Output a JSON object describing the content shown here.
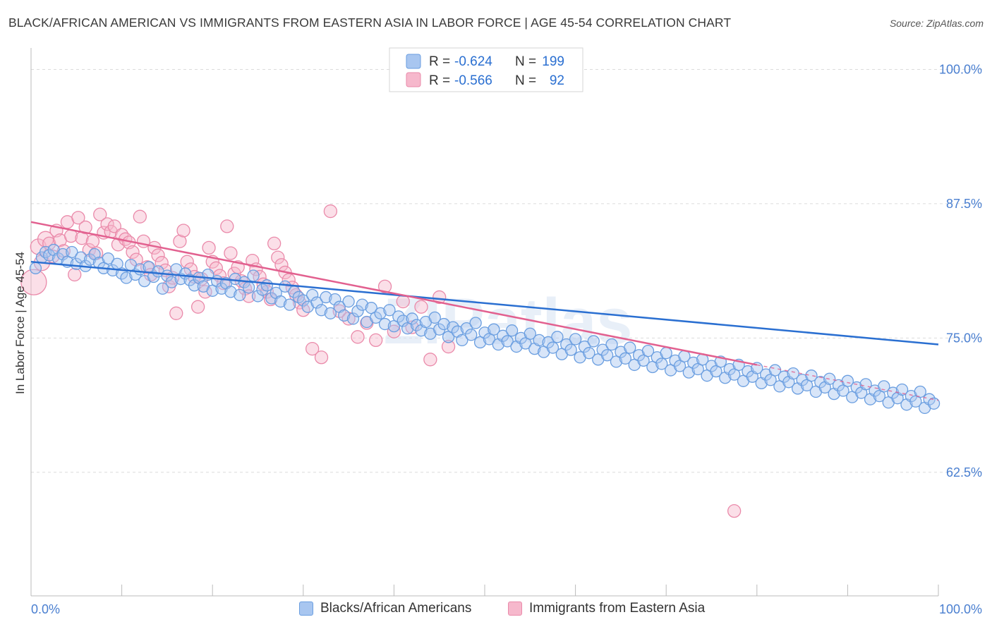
{
  "header": {
    "title": "BLACK/AFRICAN AMERICAN VS IMMIGRANTS FROM EASTERN ASIA IN LABOR FORCE | AGE 45-54 CORRELATION CHART",
    "source": "Source: ZipAtlas.com"
  },
  "watermark": "ZIPatlas",
  "legend_top": [
    {
      "r_label": "R =",
      "r_value": "-0.624",
      "n_label": "N =",
      "n_value": "199"
    },
    {
      "r_label": "R =",
      "r_value": "-0.566",
      "n_label": "N =",
      "n_value": "92"
    }
  ],
  "legend_bottom": [
    {
      "label": "Blacks/African Americans"
    },
    {
      "label": "Immigrants from Eastern Asia"
    }
  ],
  "colors": {
    "blue_fill": "#a8c6f0",
    "blue_stroke": "#6a9ee0",
    "blue_line": "#2a6fd1",
    "pink_fill": "#f6b8cc",
    "pink_stroke": "#ea8aaa",
    "pink_line": "#e2608f",
    "tick_label": "#4a7fd0",
    "grid": "#dcdcdc"
  },
  "chart_data": {
    "type": "scatter",
    "title": "BLACK/AFRICAN AMERICAN VS IMMIGRANTS FROM EASTERN ASIA IN LABOR FORCE | AGE 45-54 CORRELATION CHART",
    "xlabel": "",
    "ylabel": "In Labor Force | Age 45-54",
    "xlim": [
      0,
      100
    ],
    "ylim": [
      51,
      102
    ],
    "x_tick_labels": [
      "0.0%",
      "100.0%"
    ],
    "y_ticks": [
      62.5,
      75.0,
      87.5,
      100.0
    ],
    "y_tick_labels": [
      "62.5%",
      "75.0%",
      "87.5%",
      "100.0%"
    ],
    "grid": true,
    "legend_placement": "top-center",
    "series": [
      {
        "name": "Blacks/African Americans",
        "r": -0.624,
        "n": 199,
        "trend": {
          "x": [
            0,
            100
          ],
          "y": [
            82.1,
            74.4
          ]
        },
        "points": [
          [
            0.5,
            81.5
          ],
          [
            1.2,
            82.5
          ],
          [
            1.6,
            83.0
          ],
          [
            2.0,
            82.7
          ],
          [
            2.5,
            83.2
          ],
          [
            3.0,
            82.4
          ],
          [
            3.5,
            82.8
          ],
          [
            4.0,
            82.1
          ],
          [
            4.5,
            83.0
          ],
          [
            5.0,
            81.9
          ],
          [
            5.5,
            82.5
          ],
          [
            6.0,
            81.7
          ],
          [
            6.5,
            82.3
          ],
          [
            7.0,
            82.8
          ],
          [
            7.5,
            82.0
          ],
          [
            8.0,
            81.5
          ],
          [
            8.5,
            82.4
          ],
          [
            9.0,
            81.3
          ],
          [
            9.5,
            81.9
          ],
          [
            10.0,
            81.0
          ],
          [
            10.5,
            80.6
          ],
          [
            11.0,
            81.8
          ],
          [
            11.5,
            80.9
          ],
          [
            12.0,
            81.4
          ],
          [
            12.5,
            80.3
          ],
          [
            13.0,
            81.6
          ],
          [
            13.5,
            80.7
          ],
          [
            14.0,
            81.2
          ],
          [
            14.5,
            79.6
          ],
          [
            15.0,
            80.8
          ],
          [
            15.5,
            80.2
          ],
          [
            16.0,
            81.4
          ],
          [
            16.5,
            80.5
          ],
          [
            17.0,
            81.0
          ],
          [
            17.5,
            80.4
          ],
          [
            18.0,
            79.9
          ],
          [
            18.5,
            80.6
          ],
          [
            19.0,
            79.8
          ],
          [
            19.5,
            80.9
          ],
          [
            20.0,
            79.4
          ],
          [
            20.5,
            80.3
          ],
          [
            21.0,
            79.6
          ],
          [
            21.5,
            80.1
          ],
          [
            22.0,
            79.3
          ],
          [
            22.5,
            80.5
          ],
          [
            23.0,
            79.0
          ],
          [
            23.5,
            80.2
          ],
          [
            24.0,
            79.7
          ],
          [
            24.5,
            80.8
          ],
          [
            25.0,
            78.9
          ],
          [
            25.5,
            79.5
          ],
          [
            26.0,
            79.9
          ],
          [
            26.5,
            78.7
          ],
          [
            27.0,
            79.2
          ],
          [
            27.5,
            78.4
          ],
          [
            28.0,
            79.8
          ],
          [
            28.5,
            78.1
          ],
          [
            29.0,
            79.3
          ],
          [
            29.5,
            78.8
          ],
          [
            30.0,
            78.5
          ],
          [
            30.5,
            77.9
          ],
          [
            31.0,
            79.0
          ],
          [
            31.5,
            78.3
          ],
          [
            32.0,
            77.6
          ],
          [
            32.5,
            78.8
          ],
          [
            33.0,
            77.3
          ],
          [
            33.5,
            78.6
          ],
          [
            34.0,
            77.9
          ],
          [
            34.5,
            77.1
          ],
          [
            35.0,
            78.4
          ],
          [
            35.5,
            76.8
          ],
          [
            36.0,
            77.5
          ],
          [
            36.5,
            78.1
          ],
          [
            37.0,
            76.5
          ],
          [
            37.5,
            77.8
          ],
          [
            38.0,
            76.9
          ],
          [
            38.5,
            77.3
          ],
          [
            39.0,
            76.3
          ],
          [
            39.5,
            77.6
          ],
          [
            40.0,
            76.1
          ],
          [
            40.5,
            77.0
          ],
          [
            41.0,
            76.6
          ],
          [
            41.5,
            75.9
          ],
          [
            42.0,
            76.8
          ],
          [
            42.5,
            76.2
          ],
          [
            43.0,
            75.7
          ],
          [
            43.5,
            76.5
          ],
          [
            44.0,
            75.4
          ],
          [
            44.5,
            76.9
          ],
          [
            45.0,
            75.8
          ],
          [
            45.5,
            76.3
          ],
          [
            46.0,
            75.1
          ],
          [
            46.5,
            76.0
          ],
          [
            47.0,
            75.6
          ],
          [
            47.5,
            74.8
          ],
          [
            48.0,
            75.9
          ],
          [
            48.5,
            75.3
          ],
          [
            49.0,
            76.4
          ],
          [
            49.5,
            74.6
          ],
          [
            50.0,
            75.5
          ],
          [
            50.5,
            74.9
          ],
          [
            51.0,
            75.8
          ],
          [
            51.5,
            74.4
          ],
          [
            52.0,
            75.2
          ],
          [
            52.5,
            74.7
          ],
          [
            53.0,
            75.7
          ],
          [
            53.5,
            74.2
          ],
          [
            54.0,
            75.0
          ],
          [
            54.5,
            74.5
          ],
          [
            55.0,
            75.4
          ],
          [
            55.5,
            74.0
          ],
          [
            56.0,
            74.8
          ],
          [
            56.5,
            73.7
          ],
          [
            57.0,
            74.6
          ],
          [
            57.5,
            74.1
          ],
          [
            58.0,
            75.1
          ],
          [
            58.5,
            73.5
          ],
          [
            59.0,
            74.4
          ],
          [
            59.5,
            73.9
          ],
          [
            60.0,
            74.9
          ],
          [
            60.5,
            73.2
          ],
          [
            61.0,
            74.2
          ],
          [
            61.5,
            73.6
          ],
          [
            62.0,
            74.7
          ],
          [
            62.5,
            73.0
          ],
          [
            63.0,
            73.9
          ],
          [
            63.5,
            73.4
          ],
          [
            64.0,
            74.4
          ],
          [
            64.5,
            72.8
          ],
          [
            65.0,
            73.7
          ],
          [
            65.5,
            73.1
          ],
          [
            66.0,
            74.1
          ],
          [
            66.5,
            72.5
          ],
          [
            67.0,
            73.4
          ],
          [
            67.5,
            72.9
          ],
          [
            68.0,
            73.8
          ],
          [
            68.5,
            72.3
          ],
          [
            69.0,
            73.2
          ],
          [
            69.5,
            72.6
          ],
          [
            70.0,
            73.6
          ],
          [
            70.5,
            72.0
          ],
          [
            71.0,
            72.9
          ],
          [
            71.5,
            72.4
          ],
          [
            72.0,
            73.3
          ],
          [
            72.5,
            71.8
          ],
          [
            73.0,
            72.7
          ],
          [
            73.5,
            72.1
          ],
          [
            74.0,
            73.0
          ],
          [
            74.5,
            71.5
          ],
          [
            75.0,
            72.4
          ],
          [
            75.5,
            71.9
          ],
          [
            76.0,
            72.8
          ],
          [
            76.5,
            71.3
          ],
          [
            77.0,
            72.1
          ],
          [
            77.5,
            71.6
          ],
          [
            78.0,
            72.5
          ],
          [
            78.5,
            71.0
          ],
          [
            79.0,
            71.9
          ],
          [
            79.5,
            71.4
          ],
          [
            80.0,
            72.2
          ],
          [
            80.5,
            70.8
          ],
          [
            81.0,
            71.6
          ],
          [
            81.5,
            71.1
          ],
          [
            82.0,
            72.0
          ],
          [
            82.5,
            70.5
          ],
          [
            83.0,
            71.4
          ],
          [
            83.5,
            70.9
          ],
          [
            84.0,
            71.7
          ],
          [
            84.5,
            70.3
          ],
          [
            85.0,
            71.1
          ],
          [
            85.5,
            70.6
          ],
          [
            86.0,
            71.5
          ],
          [
            86.5,
            70.0
          ],
          [
            87.0,
            70.9
          ],
          [
            87.5,
            70.4
          ],
          [
            88.0,
            71.2
          ],
          [
            88.5,
            69.8
          ],
          [
            89.0,
            70.6
          ],
          [
            89.5,
            70.1
          ],
          [
            90.0,
            71.0
          ],
          [
            90.5,
            69.5
          ],
          [
            91.0,
            70.4
          ],
          [
            91.5,
            69.9
          ],
          [
            92.0,
            70.7
          ],
          [
            92.5,
            69.3
          ],
          [
            93.0,
            70.1
          ],
          [
            93.5,
            69.6
          ],
          [
            94.0,
            70.5
          ],
          [
            94.5,
            69.0
          ],
          [
            95.0,
            69.9
          ],
          [
            95.5,
            69.4
          ],
          [
            96.0,
            70.2
          ],
          [
            96.5,
            68.8
          ],
          [
            97.0,
            69.6
          ],
          [
            97.5,
            69.1
          ],
          [
            98.0,
            70.0
          ],
          [
            98.5,
            68.5
          ],
          [
            99.0,
            69.3
          ],
          [
            99.5,
            68.9
          ]
        ]
      },
      {
        "name": "Immigrants from Eastern Asia",
        "r": -0.566,
        "n": 92,
        "trend": {
          "x": [
            0,
            80
          ],
          "y": [
            85.8,
            72.5
          ]
        },
        "trend_dashed": {
          "x": [
            80,
            100
          ],
          "y": [
            72.5,
            69.2
          ]
        },
        "points": [
          [
            0.3,
            80.2
          ],
          [
            0.8,
            83.5
          ],
          [
            1.2,
            82.0
          ],
          [
            1.6,
            84.2
          ],
          [
            2.0,
            83.8
          ],
          [
            2.4,
            82.6
          ],
          [
            2.8,
            85.0
          ],
          [
            3.2,
            84.1
          ],
          [
            3.6,
            83.1
          ],
          [
            4.0,
            85.8
          ],
          [
            4.4,
            84.5
          ],
          [
            4.8,
            80.9
          ],
          [
            5.2,
            86.2
          ],
          [
            5.6,
            84.3
          ],
          [
            6.0,
            85.3
          ],
          [
            6.4,
            83.2
          ],
          [
            6.8,
            84.0
          ],
          [
            7.2,
            82.9
          ],
          [
            7.6,
            86.5
          ],
          [
            8.0,
            84.8
          ],
          [
            8.4,
            85.6
          ],
          [
            8.8,
            84.9
          ],
          [
            9.2,
            85.4
          ],
          [
            9.6,
            83.7
          ],
          [
            10.0,
            84.6
          ],
          [
            10.4,
            84.2
          ],
          [
            10.8,
            83.9
          ],
          [
            11.2,
            83.0
          ],
          [
            11.6,
            82.3
          ],
          [
            12.0,
            86.3
          ],
          [
            12.4,
            84.0
          ],
          [
            12.8,
            81.6
          ],
          [
            13.2,
            80.9
          ],
          [
            13.6,
            83.4
          ],
          [
            14.0,
            82.7
          ],
          [
            14.4,
            82.0
          ],
          [
            14.8,
            81.3
          ],
          [
            15.2,
            79.8
          ],
          [
            15.6,
            80.6
          ],
          [
            16.0,
            77.3
          ],
          [
            16.4,
            84.0
          ],
          [
            16.8,
            85.0
          ],
          [
            17.2,
            82.1
          ],
          [
            17.6,
            81.4
          ],
          [
            18.0,
            80.7
          ],
          [
            18.4,
            77.9
          ],
          [
            18.8,
            80.5
          ],
          [
            19.2,
            79.3
          ],
          [
            19.6,
            83.4
          ],
          [
            20.0,
            82.1
          ],
          [
            20.4,
            81.5
          ],
          [
            20.8,
            80.8
          ],
          [
            21.2,
            80.1
          ],
          [
            21.6,
            85.4
          ],
          [
            22.0,
            82.9
          ],
          [
            22.4,
            81.0
          ],
          [
            22.8,
            81.6
          ],
          [
            23.2,
            80.3
          ],
          [
            23.6,
            79.6
          ],
          [
            24.0,
            78.9
          ],
          [
            24.4,
            82.2
          ],
          [
            24.8,
            81.4
          ],
          [
            25.2,
            80.7
          ],
          [
            25.6,
            80.0
          ],
          [
            26.0,
            79.3
          ],
          [
            26.4,
            78.6
          ],
          [
            26.8,
            83.8
          ],
          [
            27.2,
            82.5
          ],
          [
            27.6,
            81.8
          ],
          [
            28.0,
            81.1
          ],
          [
            28.4,
            80.4
          ],
          [
            28.8,
            79.7
          ],
          [
            29.2,
            79.0
          ],
          [
            29.6,
            78.3
          ],
          [
            30.0,
            77.6
          ],
          [
            31.0,
            74.0
          ],
          [
            32.0,
            73.2
          ],
          [
            33.0,
            86.8
          ],
          [
            34.0,
            77.5
          ],
          [
            35.0,
            76.8
          ],
          [
            36.0,
            75.1
          ],
          [
            37.0,
            76.4
          ],
          [
            38.0,
            74.8
          ],
          [
            39.0,
            79.8
          ],
          [
            40.0,
            75.6
          ],
          [
            41.0,
            78.4
          ],
          [
            42.0,
            76.0
          ],
          [
            43.0,
            77.9
          ],
          [
            44.0,
            73.0
          ],
          [
            45.0,
            78.8
          ],
          [
            46.0,
            74.2
          ],
          [
            77.5,
            58.9
          ]
        ]
      }
    ]
  }
}
